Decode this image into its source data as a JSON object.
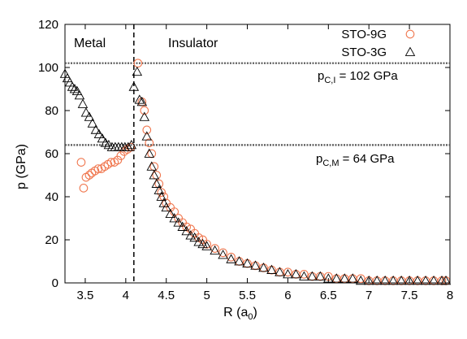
{
  "chart_data": {
    "type": "scatter",
    "xlabel": "R (a",
    "xlabel_sub": "0",
    "xlabel_close": ")",
    "ylabel": "p (GPa)",
    "xlim": [
      3.25,
      8.0
    ],
    "ylim": [
      0,
      120
    ],
    "x_ticks": [
      3.5,
      4,
      4.5,
      5,
      5.5,
      6,
      6.5,
      7,
      7.5,
      8
    ],
    "x_tick_labels": [
      "3.5",
      "4",
      "4.5",
      "5",
      "5.5",
      "6",
      "6.5",
      "7",
      "7.5",
      "8"
    ],
    "y_ticks": [
      0,
      20,
      40,
      60,
      80,
      100,
      120
    ],
    "y_tick_labels": [
      "0",
      "20",
      "40",
      "60",
      "80",
      "100",
      "120"
    ],
    "grid": false,
    "legend_position": "top-right",
    "colors": {
      "sto9g": "#f07850",
      "sto3g": "#000000",
      "ref_lines": "#555555"
    },
    "regions": [
      {
        "label": "Metal"
      },
      {
        "label": "Insulator"
      }
    ],
    "vertical_line": {
      "x": 4.1,
      "style": "dashed"
    },
    "reference_lines": [
      {
        "y": 102,
        "label": "p",
        "sub": "C,I",
        "value_text": " = 102 GPa"
      },
      {
        "y": 64,
        "label": "p",
        "sub": "C,M",
        "value_text": " = 64 GPa"
      }
    ],
    "series": [
      {
        "name": "STO-9G",
        "marker": "circle",
        "x": [
          3.45,
          3.48,
          3.51,
          3.55,
          3.58,
          3.62,
          3.66,
          3.7,
          3.74,
          3.78,
          3.82,
          3.86,
          3.9,
          3.94,
          3.98,
          4.02,
          4.06,
          4.15,
          4.2,
          4.23,
          4.26,
          4.29,
          4.32,
          4.35,
          4.38,
          4.41,
          4.44,
          4.47,
          4.5,
          4.55,
          4.6,
          4.65,
          4.7,
          4.75,
          4.8,
          4.85,
          4.9,
          4.95,
          5.0,
          5.1,
          5.2,
          5.3,
          5.4,
          5.5,
          5.6,
          5.7,
          5.8,
          5.9,
          6.0,
          6.1,
          6.2,
          6.3,
          6.4,
          6.5,
          6.6,
          6.7,
          6.8,
          6.9,
          7.0,
          7.1,
          7.2,
          7.3,
          7.4,
          7.5,
          7.6,
          7.7,
          7.8,
          7.9,
          7.95
        ],
        "y": [
          56,
          44,
          49,
          50,
          51,
          52,
          53,
          53,
          54,
          55,
          56,
          56,
          57,
          59,
          61,
          62,
          63,
          102,
          84,
          80,
          71,
          65,
          60,
          54,
          50,
          46,
          42,
          40,
          37,
          35,
          33,
          30,
          28,
          26,
          25,
          23,
          21,
          20,
          18,
          16,
          14,
          12,
          10,
          9,
          8,
          7,
          6,
          5,
          5,
          4,
          4,
          3,
          3,
          3,
          2,
          2,
          2,
          2,
          1,
          1,
          1,
          1,
          1,
          1,
          1,
          1,
          1,
          1,
          1
        ]
      },
      {
        "name": "STO-3G",
        "marker": "triangle",
        "x": [
          3.25,
          3.28,
          3.31,
          3.34,
          3.37,
          3.4,
          3.43,
          3.47,
          3.51,
          3.55,
          3.59,
          3.63,
          3.67,
          3.71,
          3.75,
          3.79,
          3.83,
          3.87,
          3.91,
          3.95,
          3.99,
          4.03,
          4.07,
          4.1,
          4.14,
          4.17,
          4.2,
          4.23,
          4.26,
          4.29,
          4.32,
          4.35,
          4.38,
          4.41,
          4.44,
          4.47,
          4.5,
          4.55,
          4.6,
          4.65,
          4.7,
          4.75,
          4.8,
          4.85,
          4.9,
          4.95,
          5.0,
          5.1,
          5.2,
          5.3,
          5.4,
          5.5,
          5.6,
          5.7,
          5.8,
          5.9,
          6.0,
          6.1,
          6.2,
          6.3,
          6.4,
          6.5,
          6.6,
          6.7,
          6.8,
          6.9,
          7.0,
          7.1,
          7.2,
          7.3,
          7.4,
          7.5,
          7.6,
          7.7,
          7.8,
          7.9,
          7.95
        ],
        "y": [
          97,
          95,
          93,
          91,
          90,
          89,
          87,
          83,
          79,
          77,
          74,
          71,
          69,
          67,
          65,
          64,
          63,
          63,
          63,
          63,
          63,
          63,
          64,
          91,
          98,
          85,
          84,
          77,
          68,
          60,
          54,
          50,
          46,
          43,
          40,
          37,
          35,
          32,
          30,
          28,
          26,
          24,
          22,
          21,
          19,
          18,
          17,
          15,
          13,
          11,
          10,
          9,
          8,
          7,
          6,
          5,
          4,
          4,
          3,
          3,
          3,
          2,
          2,
          2,
          2,
          1,
          1,
          1,
          1,
          1,
          1,
          1,
          1,
          1,
          1,
          1,
          1
        ]
      }
    ]
  }
}
